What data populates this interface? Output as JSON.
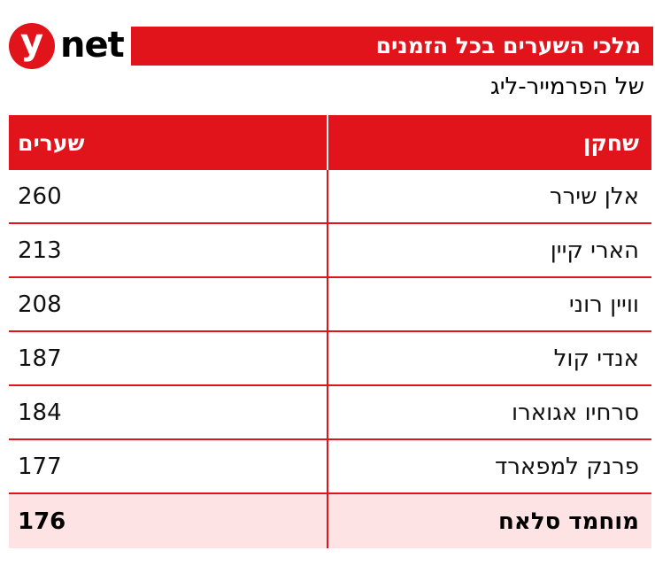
{
  "logo": {
    "letter": "y",
    "text": "net"
  },
  "title": "מלכי השערים בכל הזמנים",
  "subtitle": "של הפרמייר-ליג",
  "table": {
    "headers": {
      "player": "שחקן",
      "goals": "שערים"
    },
    "rows": [
      {
        "player": "אלן שירר",
        "goals": "260"
      },
      {
        "player": "הארי קיין",
        "goals": "213"
      },
      {
        "player": "וויין רוני",
        "goals": "208"
      },
      {
        "player": "אנדי קול",
        "goals": "187"
      },
      {
        "player": "סרחיו אגוארו",
        "goals": "184"
      },
      {
        "player": "פרנק למפארד",
        "goals": "177"
      },
      {
        "player": "מוחמד סלאח",
        "goals": "176",
        "highlighted": true
      }
    ]
  },
  "colors": {
    "accent": "#e0141a",
    "highlight_row": "#fde3e4"
  }
}
